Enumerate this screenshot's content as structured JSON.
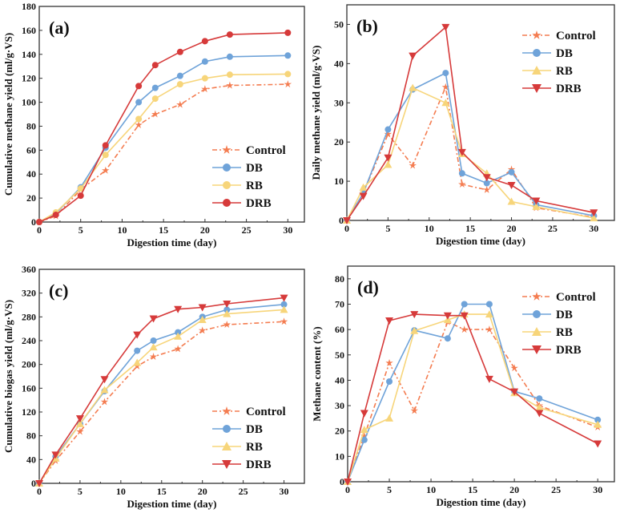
{
  "colors": {
    "Control": "#f47c50",
    "DB": "#6fa3d9",
    "RB": "#f7d57a",
    "DRB": "#d63a3a"
  },
  "chart_data": [
    {
      "type": "line",
      "panel_label": "(a)",
      "xlabel": "Digestion time (day)",
      "ylabel": "Cumulative methane yield (ml/g·VS)",
      "xlim": [
        0,
        32
      ],
      "ylim": [
        0,
        180
      ],
      "xticks": [
        0,
        5,
        10,
        15,
        20,
        25,
        30
      ],
      "yticks": [
        0,
        20,
        40,
        60,
        80,
        100,
        120,
        140,
        160,
        180
      ],
      "legend": "bottom-right",
      "x": [
        0,
        2,
        5,
        8,
        12,
        14,
        17,
        20,
        23,
        30
      ],
      "series": [
        {
          "name": "Control",
          "marker": "star",
          "values": [
            0,
            5,
            27,
            43,
            81,
            90,
            98,
            111,
            114,
            115
          ]
        },
        {
          "name": "DB",
          "marker": "circle",
          "values": [
            0,
            7,
            29,
            62,
            100,
            112,
            122,
            134,
            138,
            139
          ]
        },
        {
          "name": "RB",
          "marker": "circle",
          "values": [
            0,
            8,
            28,
            56,
            86,
            103,
            115,
            120,
            123,
            123.5
          ]
        },
        {
          "name": "DRB",
          "marker": "circle",
          "values": [
            0,
            6,
            22,
            64,
            113.5,
            131,
            142,
            151,
            156.5,
            158
          ]
        }
      ]
    },
    {
      "type": "line",
      "panel_label": "(b)",
      "xlabel": "Digestion time (day)",
      "ylabel": "Daily methane yield (ml/g·VS)",
      "xlim": [
        0,
        32.5
      ],
      "ylim": [
        0,
        55
      ],
      "xticks": [
        0,
        5,
        10,
        15,
        20,
        25,
        30
      ],
      "yticks": [
        0,
        10,
        20,
        30,
        40,
        50
      ],
      "legend": "top-right",
      "x": [
        0,
        2,
        5,
        8,
        12,
        14,
        17,
        20,
        23,
        30
      ],
      "series": [
        {
          "name": "Control",
          "marker": "star",
          "values": [
            0,
            7,
            22,
            14,
            34,
            9.2,
            7.8,
            13,
            3.2,
            0.8
          ]
        },
        {
          "name": "DB",
          "marker": "circle",
          "values": [
            0,
            7,
            23.2,
            33.4,
            37.6,
            12,
            9.5,
            12.3,
            4,
            1.2
          ]
        },
        {
          "name": "RB",
          "marker": "triangle-up",
          "values": [
            0,
            8.4,
            14.2,
            33.8,
            30,
            17,
            12,
            4.8,
            3.5,
            0.6
          ]
        },
        {
          "name": "DRB",
          "marker": "triangle-down",
          "values": [
            0,
            6.2,
            16,
            42,
            49.3,
            17.4,
            11,
            9,
            5,
            2
          ]
        }
      ]
    },
    {
      "type": "line",
      "panel_label": "(c)",
      "xlabel": "Digestion time (day)",
      "ylabel": "Cumulative biogas yield (ml/g·VS)",
      "xlim": [
        0,
        32.5
      ],
      "ylim": [
        0,
        360
      ],
      "xticks": [
        0,
        5,
        10,
        15,
        20,
        25,
        30
      ],
      "yticks": [
        0,
        40,
        80,
        120,
        160,
        200,
        240,
        280,
        320,
        360
      ],
      "legend": "bottom-right",
      "x": [
        0,
        2,
        5,
        8,
        12,
        14,
        17,
        20,
        23,
        30
      ],
      "series": [
        {
          "name": "Control",
          "marker": "star",
          "values": [
            0,
            38,
            87,
            137,
            197,
            213,
            226,
            257,
            267,
            272
          ]
        },
        {
          "name": "DB",
          "marker": "circle",
          "values": [
            0,
            45,
            100,
            155,
            223,
            240,
            254,
            280,
            292,
            301
          ]
        },
        {
          "name": "RB",
          "marker": "triangle-up",
          "values": [
            0,
            42,
            100,
            157,
            203,
            229,
            247,
            275,
            285,
            292
          ]
        },
        {
          "name": "DRB",
          "marker": "triangle-down",
          "values": [
            0,
            48,
            109,
            175,
            250,
            277,
            293,
            296,
            302,
            312
          ]
        }
      ]
    },
    {
      "type": "line",
      "panel_label": "(d)",
      "xlabel": "Digestion time (day)",
      "ylabel": "Methane content (%)",
      "xlim": [
        0,
        32
      ],
      "ylim": [
        0,
        85
      ],
      "xticks": [
        0,
        5,
        10,
        15,
        20,
        25,
        30
      ],
      "yticks": [
        0,
        10,
        20,
        30,
        40,
        50,
        60,
        70,
        80
      ],
      "legend": "top-right",
      "x": [
        0,
        2,
        5,
        8,
        12,
        14,
        17,
        20,
        23,
        30
      ],
      "series": [
        {
          "name": "Control",
          "marker": "star",
          "values": [
            0,
            18,
            46.8,
            28,
            63,
            60,
            60,
            44.8,
            30,
            21.5
          ]
        },
        {
          "name": "DB",
          "marker": "circle",
          "values": [
            0,
            16.5,
            39.5,
            59.7,
            56.5,
            70,
            70,
            35.6,
            32.8,
            24.4
          ]
        },
        {
          "name": "RB",
          "marker": "triangle-up",
          "values": [
            0,
            20.5,
            25,
            59.5,
            63.8,
            66,
            66,
            35,
            29.2,
            22.5
          ]
        },
        {
          "name": "DRB",
          "marker": "triangle-down",
          "values": [
            0,
            27,
            63.5,
            66,
            65.5,
            65.5,
            40.5,
            35.5,
            27,
            15
          ]
        }
      ]
    }
  ]
}
